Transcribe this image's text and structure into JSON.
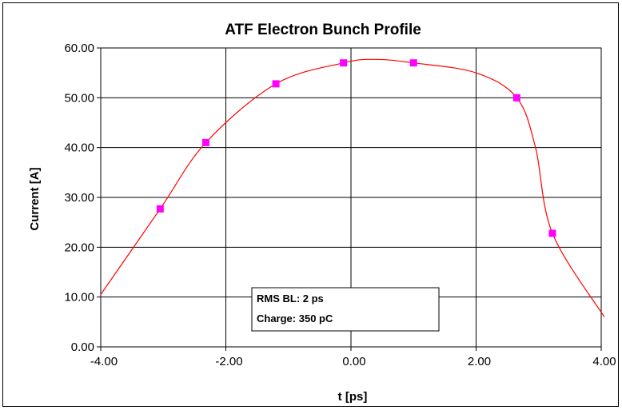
{
  "chart_data": {
    "type": "scatter",
    "title": "ATF Electron Bunch Profile",
    "xlabel": "t [ps]",
    "ylabel": "Current [A]",
    "xlim": [
      -4,
      4
    ],
    "ylim": [
      0,
      60
    ],
    "x_ticks": [
      "-4.00",
      "-2.00",
      "0.00",
      "2.00",
      "4.00"
    ],
    "y_ticks": [
      "0.00",
      "10.00",
      "20.00",
      "30.00",
      "40.00",
      "50.00",
      "60.00"
    ],
    "grid": true,
    "series": [
      {
        "kind": "markers",
        "color": "#ff00ff",
        "x": [
          -3.05,
          -2.32,
          -1.2,
          -0.12,
          1.0,
          2.65,
          3.22
        ],
        "y": [
          27.7,
          41.0,
          52.8,
          57.0,
          57.0,
          50.0,
          22.8
        ]
      },
      {
        "kind": "smooth-line",
        "color": "#ff0000",
        "x": [
          -4.0,
          -3.05,
          -2.32,
          -1.2,
          -0.12,
          0.4,
          1.0,
          2.0,
          2.65,
          2.95,
          3.22,
          4.05
        ],
        "y": [
          10.5,
          27.7,
          41.0,
          52.8,
          57.0,
          57.7,
          57.0,
          55.0,
          50.0,
          40.0,
          22.8,
          6.0
        ]
      }
    ],
    "annotations": [
      "RMS BL: 2 ps",
      "Charge: 350 pC"
    ]
  }
}
